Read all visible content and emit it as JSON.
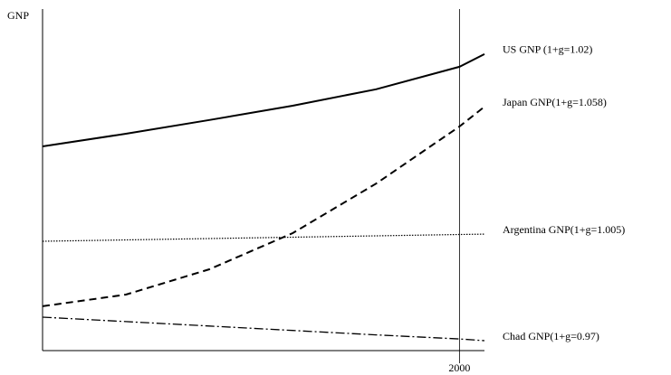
{
  "chart_data": {
    "type": "line",
    "ylabel": "GNP",
    "x": [
      1950,
      1960,
      1970,
      1980,
      1990,
      2000,
      2003
    ],
    "xlim": [
      1950,
      2003
    ],
    "xticks": [
      2000
    ],
    "ylim": [
      0,
      100
    ],
    "series": [
      {
        "name": "US GNP (1+g=1.02)",
        "color": "#000000",
        "style": "solid",
        "values": [
          59.8,
          63.5,
          67.5,
          71.7,
          76.5,
          83.1,
          86.8
        ]
      },
      {
        "name": "Japan GNP(1+g=1.058)",
        "color": "#000000",
        "style": "dashed",
        "values": [
          13,
          16.4,
          23.8,
          34.4,
          48.9,
          65.6,
          71.4
        ]
      },
      {
        "name": "Argentina GNP(1+g=1.005)",
        "color": "#000000",
        "style": "dotted",
        "values": [
          32,
          32.4,
          32.8,
          33.2,
          33.6,
          34,
          34.1
        ]
      },
      {
        "name": "Chad GNP(1+g=0.97)",
        "color": "#000000",
        "style": "dashdot",
        "values": [
          9.8,
          8.5,
          7.2,
          5.9,
          4.6,
          3.4,
          2.9
        ]
      }
    ]
  }
}
